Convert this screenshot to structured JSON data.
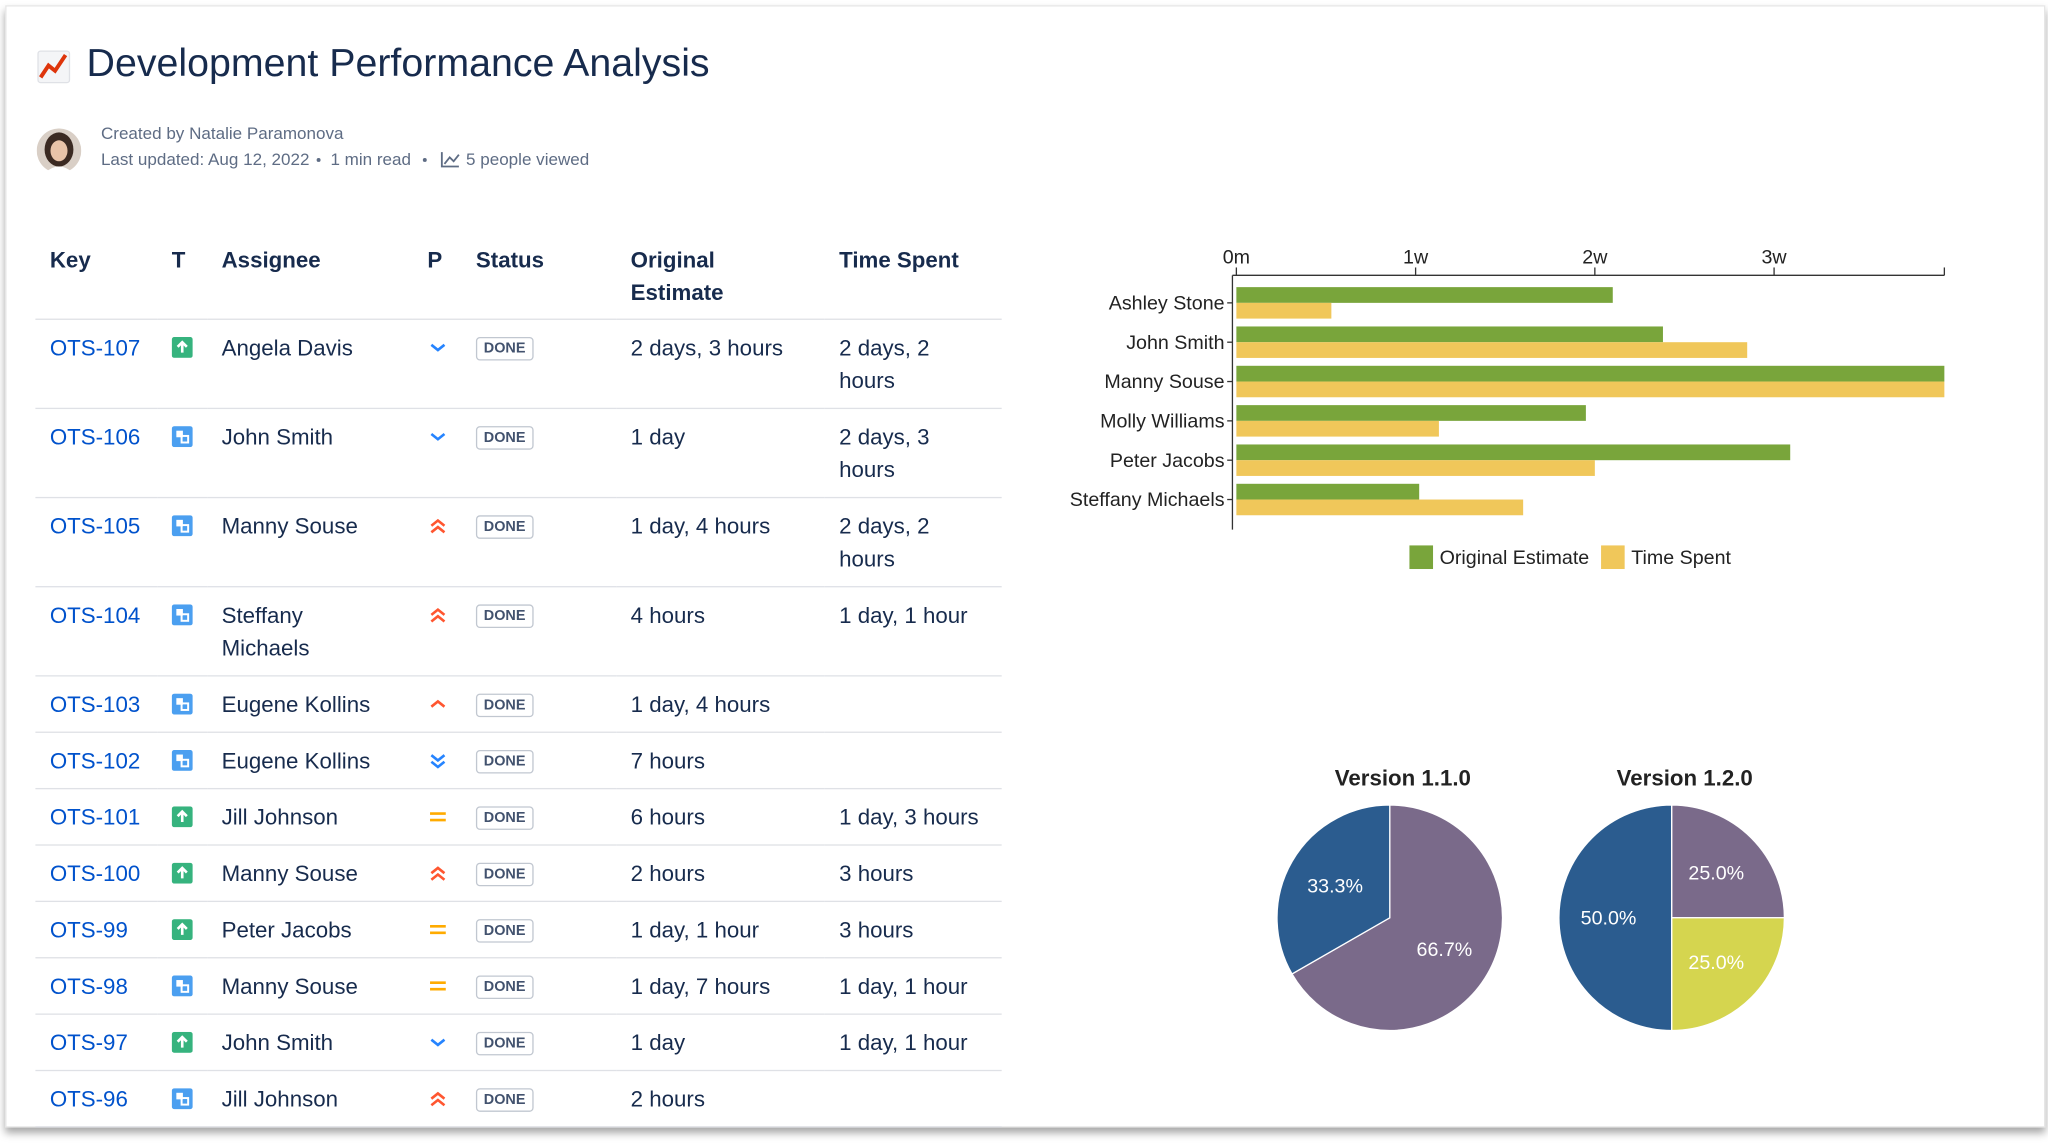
{
  "header": {
    "title": "Development Performance Analysis",
    "created_by": "Created by Natalie Paramonova",
    "last_updated": "Last updated: Aug 12, 2022",
    "read_time": "1 min read",
    "views": "5 people viewed"
  },
  "table": {
    "columns": [
      "Key",
      "T",
      "Assignee",
      "P",
      "Status",
      "Original Estimate",
      "Time Spent"
    ],
    "rows": [
      {
        "key": "OTS-107",
        "assignee": "Angela Davis",
        "status": "DONE",
        "original_estimate": "2 days, 3 hours",
        "time_spent": "2 days, 2 hours"
      },
      {
        "key": "OTS-106",
        "assignee": "John Smith",
        "status": "DONE",
        "original_estimate": "1 day",
        "time_spent": "2 days, 3 hours"
      },
      {
        "key": "OTS-105",
        "assignee": "Manny Souse",
        "status": "DONE",
        "original_estimate": "1 day, 4 hours",
        "time_spent": "2 days, 2 hours"
      },
      {
        "key": "OTS-104",
        "assignee": "Steffany Michaels",
        "status": "DONE",
        "original_estimate": "4 hours",
        "time_spent": "1 day, 1 hour"
      },
      {
        "key": "OTS-103",
        "assignee": "Eugene Kollins",
        "status": "DONE",
        "original_estimate": "1 day, 4 hours",
        "time_spent": null
      },
      {
        "key": "OTS-102",
        "assignee": "Eugene Kollins",
        "status": "DONE",
        "original_estimate": "7 hours",
        "time_spent": null
      },
      {
        "key": "OTS-101",
        "assignee": "Jill Johnson",
        "status": "DONE",
        "original_estimate": "6 hours",
        "time_spent": "1 day, 3 hours"
      },
      {
        "key": "OTS-100",
        "assignee": "Manny Souse",
        "status": "DONE",
        "original_estimate": "2 hours",
        "time_spent": "3 hours"
      },
      {
        "key": "OTS-99",
        "assignee": "Peter Jacobs",
        "status": "DONE",
        "original_estimate": "1 day, 1 hour",
        "time_spent": "3 hours"
      },
      {
        "key": "OTS-98",
        "assignee": "Manny Souse",
        "status": "DONE",
        "original_estimate": "1 day, 7 hours",
        "time_spent": "1 day, 1 hour"
      },
      {
        "key": "OTS-97",
        "assignee": "John Smith",
        "status": "DONE",
        "original_estimate": "1 day",
        "time_spent": "1 day, 1 hour"
      },
      {
        "key": "OTS-96",
        "assignee": "Jill Johnson",
        "status": "DONE",
        "original_estimate": "2 hours",
        "time_spent": null
      }
    ]
  },
  "chart_data": [
    {
      "type": "bar",
      "orientation": "horizontal",
      "categories": [
        "Ashley Stone",
        "John Smith",
        "Manny Souse",
        "Molly Williams",
        "Peter Jacobs",
        "Steffany Michaels"
      ],
      "series": [
        {
          "name": "Original Estimate",
          "color": "#79a53b",
          "values": [
            2.1,
            2.38,
            3.95,
            1.95,
            3.09,
            1.02
          ]
        },
        {
          "name": "Time Spent",
          "color": "#f0c75a",
          "values": [
            0.53,
            2.85,
            3.95,
            1.13,
            2.0,
            1.6
          ]
        }
      ],
      "xlim": [
        0,
        3.95
      ],
      "xticks": [
        {
          "value": 0,
          "label": "0m"
        },
        {
          "value": 1,
          "label": "1w"
        },
        {
          "value": 2,
          "label": "2w"
        },
        {
          "value": 3,
          "label": "3w"
        }
      ],
      "legend": "bottom"
    },
    {
      "type": "pie",
      "title": "Version 1.1.0",
      "values": [
        66.7,
        33.3
      ],
      "value_labels": [
        "66.7%",
        "33.3%"
      ],
      "colors": [
        "#7a6a8a",
        "#2b5c8f"
      ]
    },
    {
      "type": "pie",
      "title": "Version 1.2.0",
      "values": [
        25,
        25,
        50
      ],
      "value_labels": [
        "25.0%",
        "25.0%",
        "50.0%"
      ],
      "colors": [
        "#7a6a8a",
        "#d5d54f",
        "#2b5c8f"
      ]
    }
  ]
}
